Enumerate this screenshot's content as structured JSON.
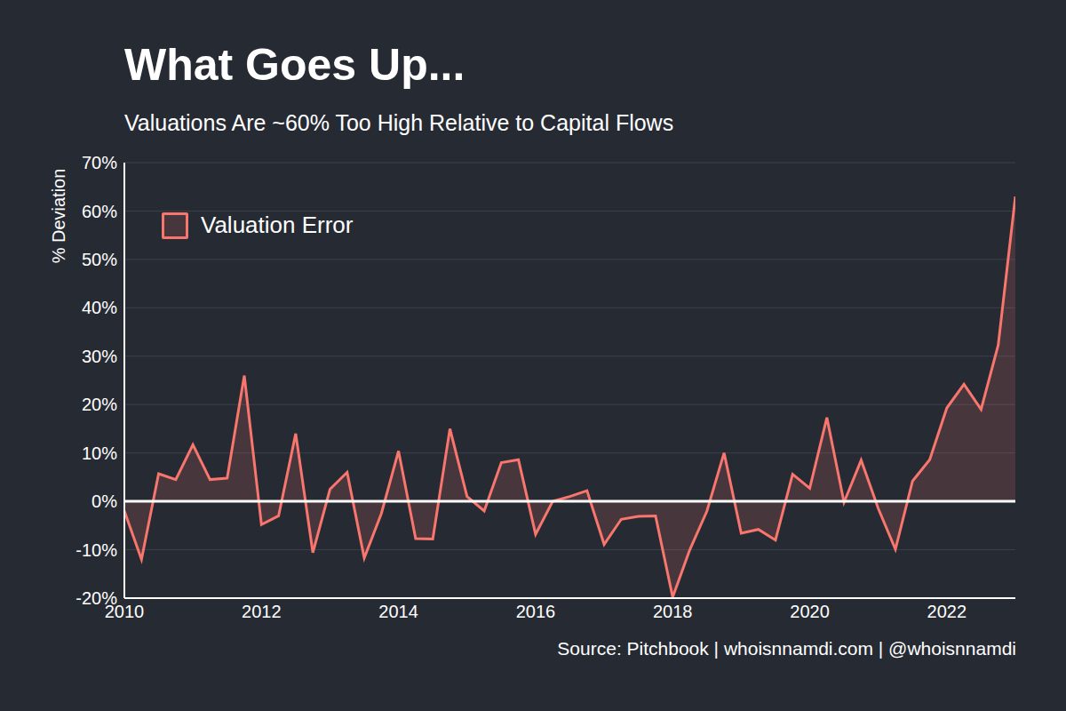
{
  "chart_data": {
    "type": "area",
    "title": "What Goes Up...",
    "subtitle": "Valuations Are ~60% Too High Relative to Capital Flows",
    "y_label": "% Deviation",
    "source": "Source: Pitchbook | whoisnnamdi.com | @whoisnnamdi",
    "x": [
      2010,
      2010.25,
      2010.5,
      2010.75,
      2011,
      2011.25,
      2011.5,
      2011.75,
      2012,
      2012.25,
      2012.5,
      2012.75,
      2013,
      2013.25,
      2013.5,
      2013.75,
      2014,
      2014.25,
      2014.5,
      2014.75,
      2015,
      2015.25,
      2015.5,
      2015.75,
      2016,
      2016.25,
      2016.5,
      2016.75,
      2017,
      2017.25,
      2017.5,
      2017.75,
      2018,
      2018.25,
      2018.5,
      2018.75,
      2019,
      2019.25,
      2019.5,
      2019.75,
      2020,
      2020.25,
      2020.5,
      2020.75,
      2021,
      2021.25,
      2021.5,
      2021.75,
      2022,
      2022.25,
      2022.5,
      2022.75,
      2023
    ],
    "series": [
      {
        "name": "Valuation Error",
        "color": "#f8766d",
        "values": [
          -2,
          -12,
          5.7,
          4.5,
          11.7,
          4.5,
          4.8,
          26,
          -4.8,
          -3,
          14,
          -10.6,
          2.5,
          6,
          -11.7,
          -2.5,
          10.4,
          -7.7,
          -7.8,
          15,
          1,
          -2,
          8,
          8.6,
          -6.8,
          0,
          1,
          2.2,
          -8.9,
          -3.7,
          -3.1,
          -3,
          -19.8,
          -10,
          -2,
          10,
          -6.6,
          -5.8,
          -8,
          5.6,
          2.7,
          17.3,
          -0.2,
          8.5,
          -1.5,
          -9.9,
          4.2,
          8.6,
          19.3,
          24.2,
          19,
          32.3,
          63
        ]
      }
    ],
    "xlim": [
      2010,
      2023
    ],
    "xticks": [
      2010,
      2012,
      2014,
      2016,
      2018,
      2020,
      2022
    ],
    "ylim": [
      -20,
      70
    ],
    "yticks": [
      {
        "value": -20,
        "label": "-20%"
      },
      {
        "value": -10,
        "label": "-10%"
      },
      {
        "value": 0,
        "label": "0%"
      },
      {
        "value": 10,
        "label": "10%"
      },
      {
        "value": 20,
        "label": "20%"
      },
      {
        "value": 30,
        "label": "30%"
      },
      {
        "value": 40,
        "label": "40%"
      },
      {
        "value": 50,
        "label": "50%"
      },
      {
        "value": 60,
        "label": "60%"
      },
      {
        "value": 70,
        "label": "70%"
      }
    ],
    "grid": true,
    "legend": "upper left"
  }
}
